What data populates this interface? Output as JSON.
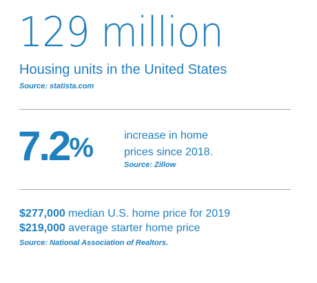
{
  "housing": {
    "headline": "129 million",
    "subhead": "Housing units in the United States",
    "source": "Source: statista.com"
  },
  "prices": {
    "percent": "7.2",
    "percent_sign": "%",
    "line1": "increase in home",
    "line2": "prices since 2018.",
    "source": "Source: Zillow"
  },
  "median": {
    "line1_amount": "$277,000",
    "line1_text": " median U.S. home price for 2019",
    "line2_amount": "$219,000",
    "line2_text": " average starter home price",
    "source": "Source: National Association of Realtors."
  },
  "colors": {
    "accent": "#1f7fbf",
    "divider": "#a8a8a8"
  }
}
